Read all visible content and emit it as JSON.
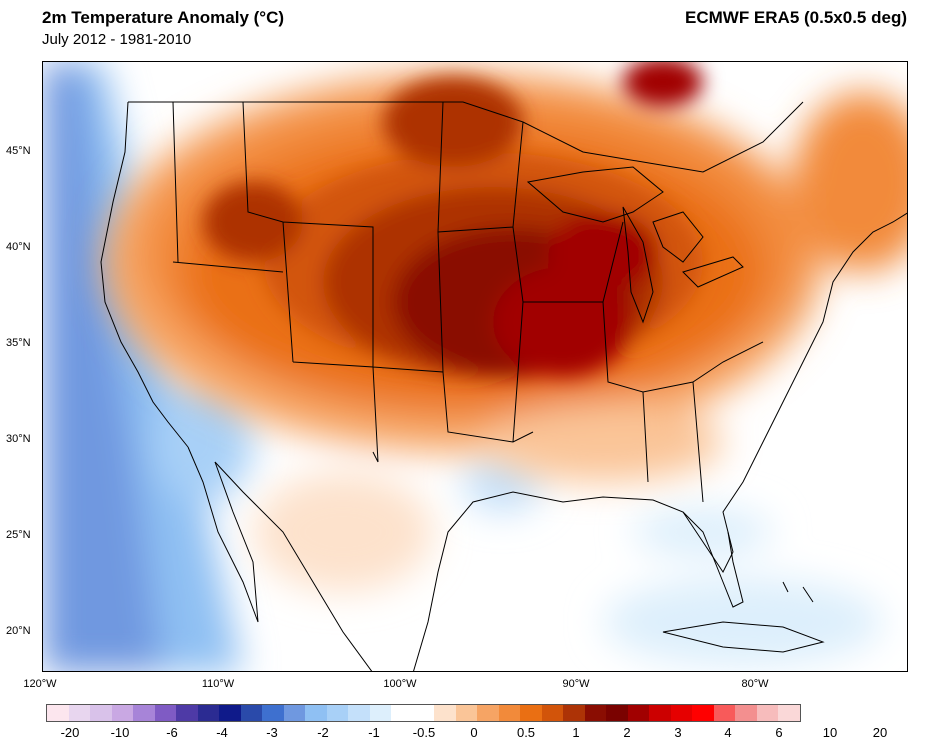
{
  "header": {
    "title": "2m Temperature Anomaly (°C)",
    "subtitle": "July 2012 - 1981-2010",
    "source": "ECMWF ERA5 (0.5x0.5 deg)"
  },
  "map": {
    "region": "Contiguous United States, northern Mexico and Caribbean",
    "lat_labels": [
      "45°N",
      "40°N",
      "35°N",
      "30°N",
      "25°N",
      "20°N"
    ],
    "lon_labels": [
      "120°W",
      "110°W",
      "100°W",
      "90°W",
      "80°W"
    ]
  },
  "colorbar": {
    "colors": [
      "#fce6ee",
      "#e8d6ef",
      "#d9c2ea",
      "#c9a8e3",
      "#a784d8",
      "#7f5bc4",
      "#4e3aa6",
      "#2b2b92",
      "#0f1a8a",
      "#2a4aaa",
      "#3e70cf",
      "#6f98e0",
      "#8fc0f3",
      "#a8d0f7",
      "#c4e0fa",
      "#ddeffc",
      "#ffffff",
      "#ffffff",
      "#fde2cc",
      "#fac598",
      "#f6a464",
      "#f28a3a",
      "#ea6f13",
      "#d2540a",
      "#ad3306",
      "#8a0d02",
      "#7a0200",
      "#a10000",
      "#cc0000",
      "#e60000",
      "#ff0000",
      "#f85a5a",
      "#f38f8f",
      "#f7bcbc",
      "#fad8d8"
    ],
    "labels": [
      "-20",
      "-10",
      "-6",
      "-4",
      "-3",
      "-2",
      "-1",
      "-0.5",
      "0",
      "0.5",
      "1",
      "2",
      "3",
      "4",
      "6",
      "10",
      "20"
    ]
  }
}
